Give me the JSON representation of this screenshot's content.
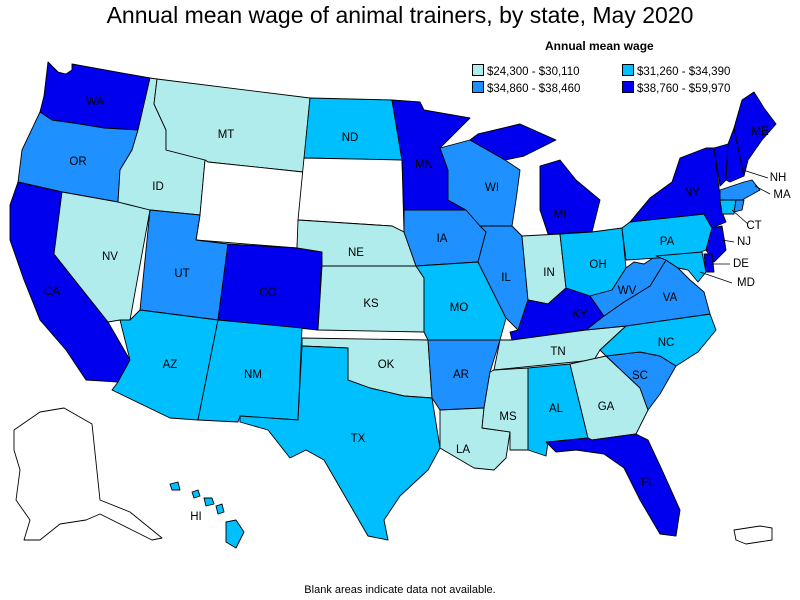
{
  "title": "Annual mean wage of animal trainers, by state, May 2020",
  "legend": {
    "title": "Annual mean wage",
    "items": [
      {
        "range": "$24,300 - $30,110",
        "color": "#b0ecec"
      },
      {
        "range": "$31,260 - $34,390",
        "color": "#00bfff"
      },
      {
        "range": "$34,860 - $38,460",
        "color": "#1e90ff"
      },
      {
        "range": "$38,760 - $59,970",
        "color": "#0000ee"
      }
    ]
  },
  "footnote": "Blank areas indicate data not available.",
  "colors": {
    "blank": "#ffffff",
    "outline": "#000000"
  },
  "states": [
    {
      "abbr": "WA",
      "tier": 3
    },
    {
      "abbr": "OR",
      "tier": 2
    },
    {
      "abbr": "CA",
      "tier": 3
    },
    {
      "abbr": "NV",
      "tier": 0
    },
    {
      "abbr": "ID",
      "tier": 0
    },
    {
      "abbr": "MT",
      "tier": 0
    },
    {
      "abbr": "WY",
      "tier": null
    },
    {
      "abbr": "UT",
      "tier": 2
    },
    {
      "abbr": "AZ",
      "tier": 1
    },
    {
      "abbr": "CO",
      "tier": 3
    },
    {
      "abbr": "NM",
      "tier": 1
    },
    {
      "abbr": "ND",
      "tier": 1
    },
    {
      "abbr": "SD",
      "tier": null
    },
    {
      "abbr": "NE",
      "tier": 0
    },
    {
      "abbr": "KS",
      "tier": 0
    },
    {
      "abbr": "OK",
      "tier": 0
    },
    {
      "abbr": "TX",
      "tier": 1
    },
    {
      "abbr": "MN",
      "tier": 3
    },
    {
      "abbr": "IA",
      "tier": 2
    },
    {
      "abbr": "MO",
      "tier": 1
    },
    {
      "abbr": "AR",
      "tier": 2
    },
    {
      "abbr": "LA",
      "tier": 0
    },
    {
      "abbr": "WI",
      "tier": 2
    },
    {
      "abbr": "IL",
      "tier": 2
    },
    {
      "abbr": "MI",
      "tier": 3
    },
    {
      "abbr": "IN",
      "tier": 0
    },
    {
      "abbr": "OH",
      "tier": 1
    },
    {
      "abbr": "KY",
      "tier": 3
    },
    {
      "abbr": "TN",
      "tier": 0
    },
    {
      "abbr": "MS",
      "tier": 0
    },
    {
      "abbr": "AL",
      "tier": 1
    },
    {
      "abbr": "GA",
      "tier": 0
    },
    {
      "abbr": "FL",
      "tier": 3
    },
    {
      "abbr": "SC",
      "tier": 2
    },
    {
      "abbr": "NC",
      "tier": 1
    },
    {
      "abbr": "VA",
      "tier": 2
    },
    {
      "abbr": "WV",
      "tier": 2
    },
    {
      "abbr": "PA",
      "tier": 1
    },
    {
      "abbr": "NY",
      "tier": 3
    },
    {
      "abbr": "VT",
      "tier": 3
    },
    {
      "abbr": "NH",
      "tier": 3
    },
    {
      "abbr": "ME",
      "tier": 3
    },
    {
      "abbr": "MA",
      "tier": 2
    },
    {
      "abbr": "CT",
      "tier": 1
    },
    {
      "abbr": "RI",
      "tier": 2
    },
    {
      "abbr": "NJ",
      "tier": 3
    },
    {
      "abbr": "DE",
      "tier": 3
    },
    {
      "abbr": "MD",
      "tier": 1
    },
    {
      "abbr": "AK",
      "tier": null
    },
    {
      "abbr": "HI",
      "tier": 1
    },
    {
      "abbr": "PR",
      "tier": null
    }
  ]
}
